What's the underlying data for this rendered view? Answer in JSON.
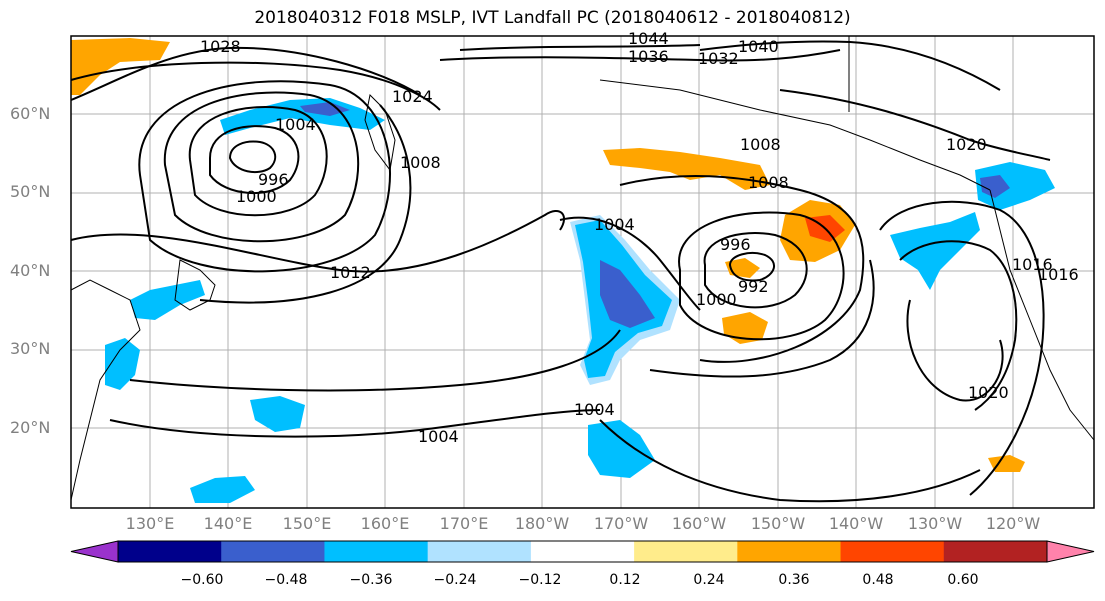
{
  "title": "2018040312 F018 MSLP, IVT Landfall PC (2018040612 - 2018040812)",
  "lat_labels": [
    "60°N",
    "50°N",
    "40°N",
    "30°N",
    "20°N"
  ],
  "lon_labels": [
    "130°E",
    "140°E",
    "150°E",
    "160°E",
    "170°E",
    "180°W",
    "170°W",
    "160°W",
    "150°W",
    "140°W",
    "130°W",
    "120°W"
  ],
  "isobar_labels": [
    "1028",
    "1024",
    "1004",
    "996",
    "1000",
    "1008",
    "1012",
    "1004",
    "1004",
    "996",
    "992",
    "1000",
    "1008",
    "1008",
    "1004",
    "1020",
    "1016",
    "1016",
    "1020",
    "1040",
    "1036",
    "1032",
    "1044"
  ],
  "colorbar": {
    "ticks": [
      "−0.60",
      "−0.48",
      "−0.36",
      "−0.24",
      "−0.12",
      "0.12",
      "0.24",
      "0.36",
      "0.48",
      "0.60"
    ],
    "colors": [
      "#9a32cd",
      "#00008b",
      "#3a5fcd",
      "#00bfff",
      "#b0e2ff",
      "#ffffff",
      "#ffec8b",
      "#ffa500",
      "#ff4500",
      "#b22222",
      "#ff82ab"
    ]
  }
}
